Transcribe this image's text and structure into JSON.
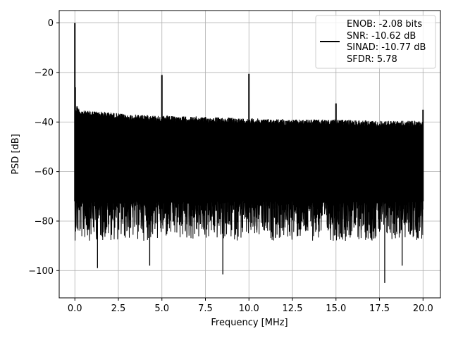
{
  "chart_data": {
    "type": "line",
    "title": "",
    "xlabel": "Frequency [MHz]",
    "ylabel": "PSD [dB]",
    "xlim": [
      -0.9,
      21.0
    ],
    "ylim": [
      -111,
      5
    ],
    "xticks": [
      0,
      2.5,
      5,
      7.5,
      10,
      12.5,
      15,
      17.5,
      20
    ],
    "xtick_labels": [
      "0.0",
      "2.5",
      "5.0",
      "7.5",
      "10.0",
      "12.5",
      "15.0",
      "17.5",
      "20.0"
    ],
    "yticks": [
      0,
      -20,
      -40,
      -60,
      -80,
      -100
    ],
    "ytick_labels": [
      "0",
      "−20",
      "−40",
      "−60",
      "−80",
      "−100"
    ],
    "grid": true,
    "legend_position": "top-right",
    "line_color": "#000000",
    "series": [
      {
        "name": "ENOB: -2.08 bits\nSNR: -10.62 dB\nSINAD: -10.77 dB\nSFDR: 5.78",
        "legend_lines": [
          "ENOB: -2.08 bits",
          "SNR: -10.62 dB",
          "SINAD: -10.77 dB",
          "SFDR: 5.78"
        ],
        "x_range": [
          0,
          20
        ],
        "upper_envelope": {
          "x": [
            0,
            0.1,
            0.3,
            0.6,
            1.0,
            2.0,
            2.5,
            3.0,
            4.0,
            5.0,
            7.5,
            10.0,
            12.5,
            15.0,
            17.5,
            20.0
          ],
          "y": [
            -36,
            -33,
            -35,
            -35.5,
            -35.5,
            -36,
            -36.5,
            -37,
            -37,
            -37.5,
            -38,
            -38.5,
            -39,
            -39,
            -39.5,
            -39.5
          ]
        },
        "noise_floor_typical": -72,
        "spurs": [
          {
            "x": 0.0,
            "y": 0
          },
          {
            "x": 0.02,
            "y": -26
          },
          {
            "x": 5.0,
            "y": -21
          },
          {
            "x": 10.0,
            "y": -20.5
          },
          {
            "x": 15.0,
            "y": -32.5
          },
          {
            "x": 20.0,
            "y": -35
          }
        ],
        "notable_minima": [
          {
            "x": 1.3,
            "y": -99
          },
          {
            "x": 4.3,
            "y": -98
          },
          {
            "x": 8.5,
            "y": -101.5
          },
          {
            "x": 17.8,
            "y": -105
          },
          {
            "x": 18.8,
            "y": -98
          }
        ]
      }
    ]
  }
}
